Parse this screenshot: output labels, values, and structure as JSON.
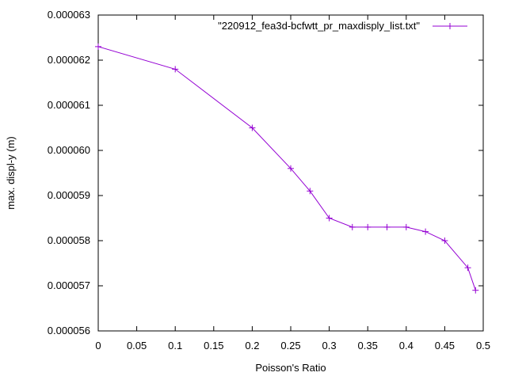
{
  "chart_data": {
    "type": "line",
    "title": "",
    "xlabel": "Poisson's Ratio",
    "ylabel": "max. displ-y (m)",
    "xlim": [
      0,
      0.5
    ],
    "ylim": [
      5.6e-05,
      6.3e-05
    ],
    "x_ticks": [
      "0",
      "0.05",
      "0.1",
      "0.15",
      "0.2",
      "0.25",
      "0.3",
      "0.35",
      "0.4",
      "0.45",
      "0.5"
    ],
    "y_ticks": [
      "0.000056",
      "0.000057",
      "0.000058",
      "0.000059",
      "0.000060",
      "0.000061",
      "0.000062",
      "0.000063"
    ],
    "grid": false,
    "legend_position": "top-right",
    "series": [
      {
        "name": "\"220912_fea3d-bcfwtt_pr_maxdisply_list.txt\"",
        "color": "#9400d3",
        "marker": "plus",
        "points": [
          {
            "x": 0.0,
            "y": 6.23e-05
          },
          {
            "x": 0.1,
            "y": 6.18e-05
          },
          {
            "x": 0.2,
            "y": 6.05e-05
          },
          {
            "x": 0.25,
            "y": 5.96e-05
          },
          {
            "x": 0.275,
            "y": 5.91e-05
          },
          {
            "x": 0.3,
            "y": 5.85e-05
          },
          {
            "x": 0.33,
            "y": 5.83e-05
          },
          {
            "x": 0.35,
            "y": 5.83e-05
          },
          {
            "x": 0.375,
            "y": 5.83e-05
          },
          {
            "x": 0.4,
            "y": 5.83e-05
          },
          {
            "x": 0.425,
            "y": 5.82e-05
          },
          {
            "x": 0.45,
            "y": 5.8e-05
          },
          {
            "x": 0.48,
            "y": 5.74e-05
          },
          {
            "x": 0.49,
            "y": 5.69e-05
          }
        ]
      }
    ]
  }
}
